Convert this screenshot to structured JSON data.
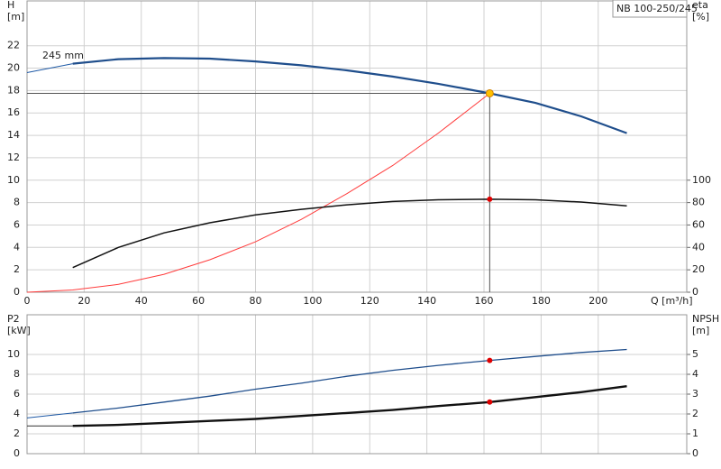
{
  "chart_data": [
    {
      "type": "line",
      "title": "NB 100-250/245",
      "x_label": "Q [m³/h]",
      "y_label": "H",
      "y_unit": "[m]",
      "y2_label": "eta",
      "y2_unit": "[%]",
      "annotation": "245 mm",
      "xlim": [
        0,
        231
      ],
      "xticks": [
        0,
        20,
        40,
        60,
        80,
        100,
        120,
        140,
        160,
        180,
        200
      ],
      "ylim": [
        0,
        26
      ],
      "yticks": [
        0,
        2,
        4,
        6,
        8,
        10,
        12,
        14,
        16,
        18,
        20,
        22
      ],
      "y2lim": [
        0,
        260
      ],
      "y2ticks": [
        0,
        20,
        40,
        60,
        80,
        100
      ],
      "grid": true,
      "series": [
        {
          "color": "#1f5aa6",
          "width": 1,
          "x": [
            0,
            16
          ],
          "values": [
            19.6,
            20.4
          ]
        },
        {
          "color": "#1f4e8c",
          "width": 2.2,
          "x": [
            16,
            32,
            48,
            64,
            80,
            96,
            112,
            128,
            144,
            162,
            178,
            194,
            210
          ],
          "values": [
            20.4,
            20.8,
            20.9,
            20.85,
            20.6,
            20.25,
            19.8,
            19.25,
            18.6,
            17.75,
            16.9,
            15.7,
            14.2
          ]
        },
        {
          "color": "#ff3b3b",
          "width": 1,
          "x": [
            0,
            16,
            32,
            48,
            64,
            80,
            96,
            112,
            128,
            144,
            162
          ],
          "values": [
            0,
            0.2,
            0.7,
            1.6,
            2.9,
            4.5,
            6.5,
            8.8,
            11.3,
            14.2,
            17.75
          ]
        },
        {
          "color": "#111111",
          "width": 1.5,
          "axis": "y2",
          "x": [
            16,
            32,
            48,
            64,
            80,
            96,
            112,
            128,
            144,
            162,
            178,
            194,
            210
          ],
          "values": [
            22,
            40,
            53,
            62,
            69,
            74,
            78,
            81,
            82.5,
            83,
            82.5,
            80.5,
            77
          ]
        }
      ],
      "operating_point": {
        "x": 162,
        "y": 17.75,
        "color": "#ffc000"
      },
      "markers": [
        {
          "x": 162,
          "y": 83,
          "axis": "y2",
          "color": "#e00000"
        }
      ]
    },
    {
      "type": "line",
      "y_label": "P2",
      "y_unit": "[kW]",
      "y2_label": "NPSH",
      "y2_unit": "[m]",
      "xlim": [
        0,
        231
      ],
      "xticks": [
        0,
        20,
        40,
        60,
        80,
        100,
        120,
        140,
        160,
        180,
        200
      ],
      "ylim": [
        0,
        14
      ],
      "yticks": [
        0,
        2,
        4,
        6,
        8,
        10
      ],
      "y2lim": [
        0,
        7
      ],
      "y2ticks": [
        0,
        1,
        2,
        3,
        4,
        5
      ],
      "grid": true,
      "series": [
        {
          "color": "#1f5aa6",
          "width": 1,
          "x": [
            0,
            16
          ],
          "values": [
            3.6,
            4.1
          ]
        },
        {
          "color": "#1f4e8c",
          "width": 1.3,
          "x": [
            16,
            32,
            48,
            64,
            80,
            96,
            112,
            128,
            144,
            162,
            178,
            194,
            210
          ],
          "values": [
            4.1,
            4.6,
            5.2,
            5.8,
            6.5,
            7.1,
            7.8,
            8.4,
            8.9,
            9.4,
            9.8,
            10.2,
            10.5
          ]
        },
        {
          "color": "#333333",
          "width": 1,
          "axis": "y2",
          "x": [
            0,
            16
          ],
          "values": [
            1.4,
            1.4
          ]
        },
        {
          "color": "#111111",
          "width": 2.4,
          "axis": "y2",
          "x": [
            16,
            32,
            48,
            64,
            80,
            96,
            112,
            128,
            144,
            162,
            178,
            194,
            210
          ],
          "values": [
            1.4,
            1.45,
            1.55,
            1.65,
            1.75,
            1.9,
            2.05,
            2.2,
            2.4,
            2.6,
            2.85,
            3.1,
            3.4
          ]
        }
      ],
      "markers": [
        {
          "x": 162,
          "y": 9.4,
          "color": "#e00000"
        },
        {
          "x": 162,
          "y": 2.6,
          "axis": "y2",
          "color": "#e00000"
        }
      ]
    }
  ]
}
